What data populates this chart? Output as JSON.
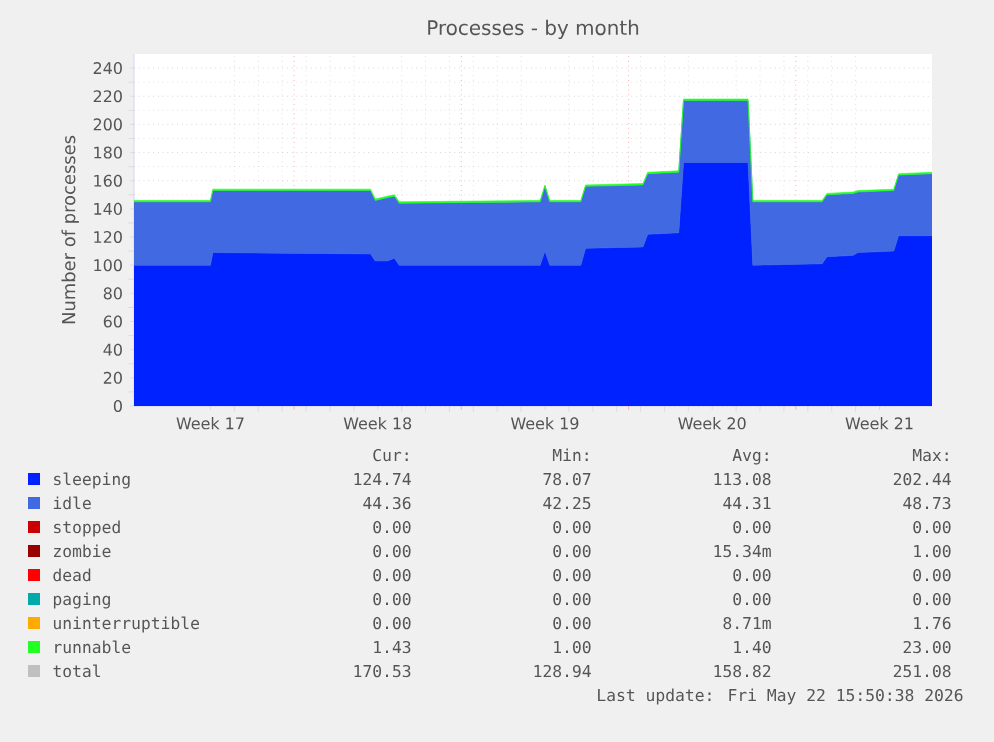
{
  "chart_data": {
    "type": "area",
    "title": "Processes - by month",
    "ylabel": "Number of processes",
    "stacked": true,
    "grid": true,
    "legend": "bottom",
    "x": [
      "2026-04-20T07:12",
      "2026-04-23T12:00",
      "2026-04-23T14:24",
      "2026-04-30T04:48",
      "2026-04-30T09:36",
      "2026-04-30T21:36",
      "2026-05-01T04:48",
      "2026-05-01T09:36",
      "2026-05-07T07:12",
      "2026-05-07T12:00",
      "2026-05-07T16:48",
      "2026-05-09T00:00",
      "2026-05-09T04:48",
      "2026-05-11T14:24",
      "2026-05-11T19:12",
      "2026-05-13T02:24",
      "2026-05-13T07:12",
      "2026-05-16T00:00",
      "2026-05-16T04:48",
      "2026-05-19T02:24",
      "2026-05-19T07:12",
      "2026-05-20T09:36",
      "2026-05-20T14:24",
      "2026-05-22T02:24",
      "2026-05-22T07:12",
      "2026-05-23T16:48"
    ],
    "xlim": [
      "2026-04-20T07:12",
      "2026-05-23T16:48"
    ],
    "xticks": [
      {
        "value": "2026-04-23T12:00",
        "label": "Week 17"
      },
      {
        "value": "2026-04-30T12:00",
        "label": "Week 18"
      },
      {
        "value": "2026-05-07T12:00",
        "label": "Week 19"
      },
      {
        "value": "2026-05-14T12:00",
        "label": "Week 20"
      },
      {
        "value": "2026-05-21T12:00",
        "label": "Week 21"
      },
      {
        "value": "2026-04-27",
        "label": null
      },
      {
        "value": "2026-05-04",
        "label": null
      },
      {
        "value": "2026-05-11",
        "label": null
      },
      {
        "value": "2026-05-18",
        "label": null
      }
    ],
    "ylim": [
      0,
      250
    ],
    "yticks": [
      0,
      20,
      40,
      60,
      80,
      100,
      120,
      140,
      160,
      180,
      200,
      220,
      240
    ],
    "series": [
      {
        "name": "sleeping",
        "color": "#0022ff",
        "values": [
          100,
          100,
          109,
          108,
          103,
          103,
          105,
          100,
          100,
          110,
          100,
          100,
          112,
          113,
          122,
          123,
          173,
          173,
          100,
          101,
          106,
          107,
          109,
          110,
          121,
          121
        ]
      },
      {
        "name": "idle",
        "color": "#4169e1",
        "values": [
          45,
          45,
          44,
          45,
          43,
          45,
          44,
          44,
          45,
          46,
          45,
          45,
          44,
          44,
          43,
          43,
          44,
          44,
          45,
          44,
          44,
          44,
          43,
          43,
          43,
          44
        ]
      },
      {
        "name": "stopped",
        "color": "#cc0000",
        "values": [
          null,
          null,
          null,
          null,
          null,
          null,
          null,
          null,
          null,
          null,
          null,
          null,
          null,
          null,
          null,
          null,
          null,
          null,
          null,
          null,
          null,
          null,
          null,
          null,
          null,
          null
        ]
      },
      {
        "name": "zombie",
        "color": "#990000",
        "values": [
          null,
          null,
          null,
          null,
          null,
          null,
          null,
          null,
          null,
          null,
          null,
          null,
          null,
          null,
          null,
          null,
          null,
          null,
          null,
          null,
          null,
          null,
          null,
          null,
          null,
          null
        ]
      },
      {
        "name": "dead",
        "color": "#ff0000",
        "values": [
          null,
          null,
          null,
          null,
          null,
          null,
          null,
          null,
          null,
          null,
          null,
          null,
          null,
          null,
          null,
          null,
          null,
          null,
          null,
          null,
          null,
          null,
          null,
          null,
          null,
          null
        ]
      },
      {
        "name": "paging",
        "color": "#00aaaa",
        "values": [
          null,
          null,
          null,
          null,
          null,
          null,
          null,
          null,
          null,
          null,
          null,
          null,
          null,
          null,
          null,
          null,
          null,
          null,
          null,
          null,
          null,
          null,
          null,
          null,
          null,
          null
        ]
      },
      {
        "name": "uninterruptible",
        "color": "#ffaa00",
        "values": [
          null,
          null,
          null,
          null,
          null,
          null,
          null,
          null,
          null,
          null,
          null,
          null,
          null,
          null,
          null,
          null,
          null,
          null,
          null,
          null,
          null,
          null,
          null,
          null,
          null,
          null
        ]
      },
      {
        "name": "runnable",
        "color": "#22ff22",
        "values": [
          1,
          1,
          1,
          1,
          1,
          1,
          1,
          1,
          1,
          1,
          1,
          1,
          1,
          1,
          1,
          1,
          1,
          1,
          1,
          1,
          1,
          1,
          1,
          1,
          1,
          1
        ]
      },
      {
        "name": "total",
        "color": "#c0c0c0",
        "values": [
          null,
          null,
          null,
          null,
          null,
          null,
          null,
          null,
          null,
          null,
          null,
          null,
          null,
          null,
          null,
          null,
          null,
          null,
          null,
          null,
          null,
          null,
          null,
          null,
          null,
          null
        ]
      }
    ],
    "annotations": [
      "Cur:",
      "Min:",
      "Avg:",
      "Max:",
      "124.74",
      "78.07",
      "113.08",
      "202.44",
      "44.36",
      "42.25",
      "44.31",
      "48.73",
      "0.00",
      "0.00",
      "0.00",
      "0.00",
      "0.00",
      "0.00",
      "15.34m",
      "1.00",
      "0.00",
      "0.00",
      "0.00",
      "0.00",
      "0.00",
      "0.00",
      "0.00",
      "0.00",
      "0.00",
      "0.00",
      "8.71m",
      "1.76",
      "1.43",
      "1.00",
      "1.40",
      "23.00",
      "170.53",
      "128.94",
      "158.82",
      "251.08",
      "Last update: Fri May 22 15:50:38 2026"
    ]
  }
}
